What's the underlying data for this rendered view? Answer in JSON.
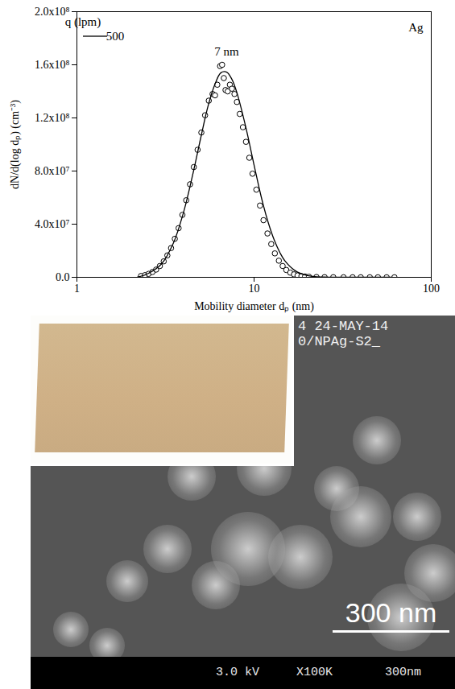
{
  "chart_data": {
    "type": "scatter",
    "x_label": "Mobility diameter dₚ (nm)",
    "y_label": "dN/d(log dₚ) (cm⁻³)",
    "log": "x",
    "grid": false,
    "legend": "top left",
    "legend_title": "q (lpm)",
    "xlim": [
      1,
      100
    ],
    "xticks": [
      1,
      10,
      100
    ],
    "ylim": [
      0,
      200000000.0
    ],
    "yticks": [
      {
        "value": 0,
        "label": "0.0"
      },
      {
        "value": 40000000.0,
        "label": "4.0x10⁷"
      },
      {
        "value": 80000000.0,
        "label": "8.0x10⁷"
      },
      {
        "value": 120000000.0,
        "label": "1.2x10⁸"
      },
      {
        "value": 160000000.0,
        "label": "1.6x10⁸"
      },
      {
        "value": 200000000.0,
        "label": "2.0x10⁸"
      }
    ],
    "series": [
      {
        "type": "scatter",
        "marker": "circle",
        "color": "#000000",
        "x": [
          2.3,
          2.42,
          2.54,
          2.67,
          2.8,
          2.94,
          3.09,
          3.24,
          3.4,
          3.57,
          3.75,
          3.94,
          4.14,
          4.35,
          4.57,
          4.8,
          5.04,
          5.29,
          5.55,
          5.83,
          6.02,
          6.2,
          6.43,
          6.6,
          6.75,
          6.9,
          7.1,
          7.3,
          7.5,
          7.75,
          8.0,
          8.3,
          8.65,
          9.0,
          9.4,
          9.8,
          10.3,
          10.8,
          11.3,
          11.9,
          12.5,
          13.1,
          13.8,
          14.5,
          15.2,
          16.0,
          16.8,
          17.6,
          18.5,
          19.4,
          20.4,
          22.5,
          25,
          28,
          32,
          36,
          40,
          45,
          50,
          56,
          62
        ],
        "values": [
          1000000.0,
          1600000.0,
          2600000.0,
          4000000.0,
          5800000.0,
          8500000.0,
          12000000.0,
          16500000.0,
          22000000.0,
          29000000.0,
          37000000.0,
          47000000.0,
          58000000.0,
          70000000.0,
          83000000.0,
          96000000.0,
          109000000.0,
          122000000.0,
          133000000.0,
          138000000.0,
          137000000.0,
          145000000.0,
          159000000.0,
          160000000.0,
          150000000.0,
          141000000.0,
          140000000.0,
          145000000.0,
          142000000.0,
          138000000.0,
          132000000.0,
          123000000.0,
          113000000.0,
          102000000.0,
          90000000.0,
          78000000.0,
          66000000.0,
          54000000.0,
          43000000.0,
          33000000.0,
          25000000.0,
          18000000.0,
          12500000.0,
          8500000.0,
          5500000.0,
          3500000.0,
          2200000.0,
          1400000.0,
          900000.0,
          600000.0,
          400000.0,
          200000.0,
          100000.0,
          50000.0,
          0,
          0,
          0,
          0,
          0,
          0,
          0
        ]
      },
      {
        "name": "500",
        "type": "line",
        "line_style": "solid",
        "color": "#000000",
        "x": [
          2.2,
          2.5,
          3,
          3.5,
          4,
          4.5,
          5,
          5.5,
          6,
          6.5,
          7,
          7.5,
          8,
          9,
          10,
          11,
          12,
          13,
          14,
          15,
          17,
          20,
          25,
          30,
          40,
          60
        ],
        "values": [
          200000.0,
          2600000.0,
          10000000.0,
          25600000.0,
          49000000.0,
          77000000.0,
          105000000.0,
          129000000.0,
          145000000.0,
          154000000.0,
          154500000.0,
          149000000.0,
          139000000.0,
          112500000.0,
          84500000.0,
          60000000.0,
          41500000.0,
          28000000.0,
          18500000.0,
          12000000.0,
          5100000.0,
          1300000.0,
          160000.0,
          10000.0,
          0,
          0
        ]
      }
    ],
    "annotations": [
      {
        "text": "7 nm",
        "x": 7,
        "y": 170000000.0
      },
      {
        "text": "Ag",
        "position": "top right"
      }
    ]
  },
  "sem_image": {
    "header": [
      "4 24-MAY-14",
      "0/NPAg-S2_"
    ],
    "scale_bar": "300 nm",
    "info_bar": [
      "3.0 kV",
      "X100K",
      "300nm"
    ]
  }
}
